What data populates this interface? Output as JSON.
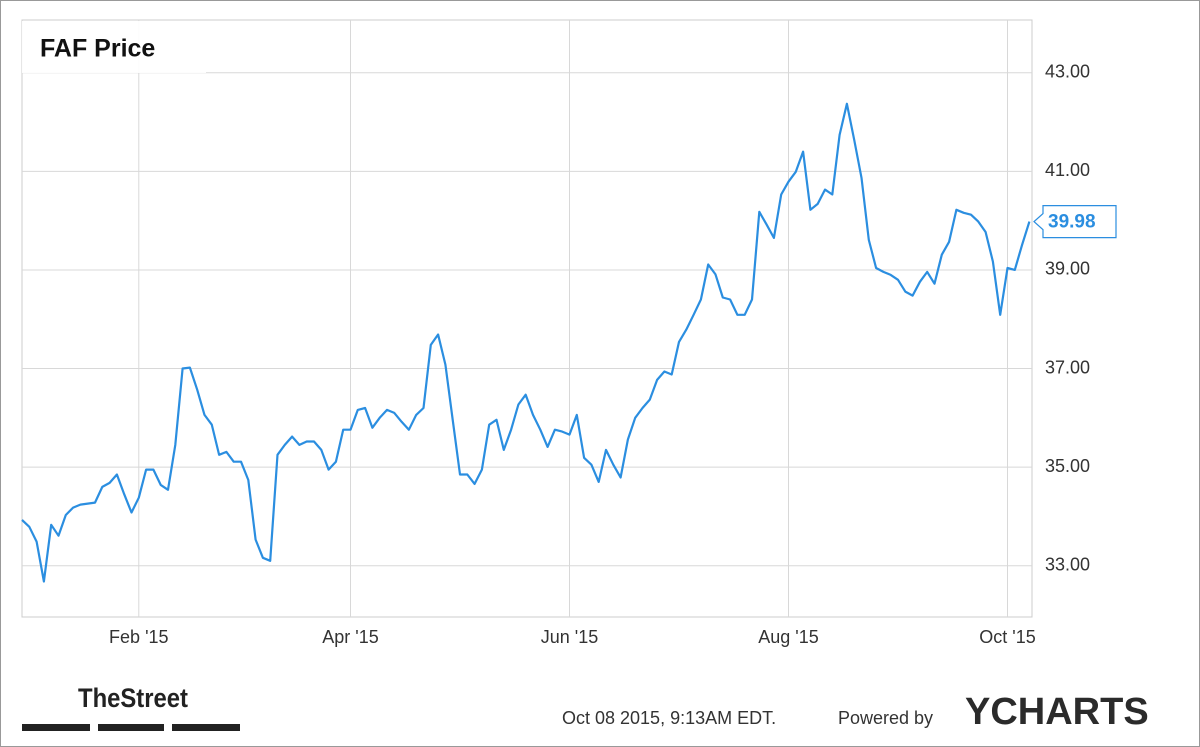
{
  "chart_data": {
    "type": "line",
    "title": "FAF Price",
    "color": "#2b8ee0",
    "grid": true,
    "categories": [
      null,
      null,
      null,
      null,
      null,
      null,
      null,
      null,
      null,
      null,
      null,
      null,
      null,
      null,
      null,
      null,
      "Feb '15",
      null,
      null,
      null,
      null,
      null,
      null,
      null,
      null,
      null,
      null,
      null,
      null,
      null,
      null,
      null,
      null,
      null,
      null,
      null,
      null,
      null,
      null,
      null,
      null,
      null,
      null,
      null,
      null,
      "Apr '15",
      null,
      null,
      null,
      null,
      null,
      null,
      null,
      null,
      null,
      null,
      null,
      null,
      null,
      null,
      null,
      null,
      null,
      null,
      null,
      null,
      null,
      null,
      null,
      null,
      null,
      null,
      null,
      null,
      null,
      "Jun '15",
      null,
      null,
      null,
      null,
      null,
      null,
      null,
      null,
      null,
      null,
      null,
      null,
      null,
      null,
      null,
      null,
      null,
      null,
      null,
      null,
      null,
      null,
      null,
      null,
      null,
      null,
      null,
      null,
      null,
      "Aug '15",
      null,
      null,
      null,
      null,
      null,
      null,
      null,
      null,
      null,
      null,
      null,
      null,
      null,
      null,
      null,
      null,
      null,
      null,
      null,
      null,
      null,
      null,
      null,
      null,
      null,
      null,
      null,
      null,
      null,
      "Oct '15",
      null,
      null,
      null
    ],
    "values": [
      33.93,
      33.79,
      33.49,
      32.68,
      33.83,
      33.61,
      34.03,
      34.18,
      34.24,
      34.26,
      34.28,
      34.6,
      34.68,
      34.85,
      34.45,
      34.08,
      34.38,
      34.95,
      34.95,
      34.64,
      34.54,
      35.45,
      37.0,
      37.02,
      36.57,
      36.06,
      35.86,
      35.25,
      35.31,
      35.11,
      35.11,
      34.74,
      33.53,
      33.16,
      33.1,
      35.25,
      35.45,
      35.62,
      35.45,
      35.52,
      35.52,
      35.35,
      34.95,
      35.11,
      35.76,
      35.76,
      36.16,
      36.2,
      35.8,
      36.0,
      36.16,
      36.1,
      35.92,
      35.76,
      36.06,
      36.2,
      37.48,
      37.69,
      37.08,
      35.96,
      34.85,
      34.85,
      34.66,
      34.95,
      35.86,
      35.96,
      35.35,
      35.76,
      36.27,
      36.47,
      36.06,
      35.76,
      35.41,
      35.76,
      35.72,
      35.66,
      36.06,
      35.19,
      35.05,
      34.7,
      35.35,
      35.05,
      34.79,
      35.56,
      36.0,
      36.2,
      36.37,
      36.77,
      36.94,
      36.88,
      37.54,
      37.79,
      38.09,
      38.4,
      39.11,
      38.91,
      38.44,
      38.4,
      38.09,
      38.09,
      38.4,
      40.18,
      39.92,
      39.65,
      40.53,
      40.79,
      40.99,
      41.4,
      40.22,
      40.34,
      40.63,
      40.53,
      41.74,
      42.37,
      41.64,
      40.87,
      39.61,
      39.04,
      38.96,
      38.9,
      38.8,
      38.56,
      38.48,
      38.76,
      38.96,
      38.72,
      39.31,
      39.57,
      40.22,
      40.16,
      40.12,
      39.98,
      39.77,
      39.17,
      38.09,
      39.04,
      39.0,
      39.51,
      39.98
    ],
    "ylim": [
      31.96,
      44.07
    ],
    "yticks": [
      {
        "value": 33,
        "label": "33.00"
      },
      {
        "value": 35,
        "label": "35.00"
      },
      {
        "value": 37,
        "label": "37.00"
      },
      {
        "value": 39,
        "label": "39.00"
      },
      {
        "value": 41,
        "label": "41.00"
      },
      {
        "value": 43,
        "label": "43.00"
      }
    ]
  },
  "footer": {
    "source": "TheStreet",
    "timestamp": "Oct 08 2015, 9:13AM EDT.",
    "powered_by": "Powered by",
    "brand": "YCHARTS"
  }
}
